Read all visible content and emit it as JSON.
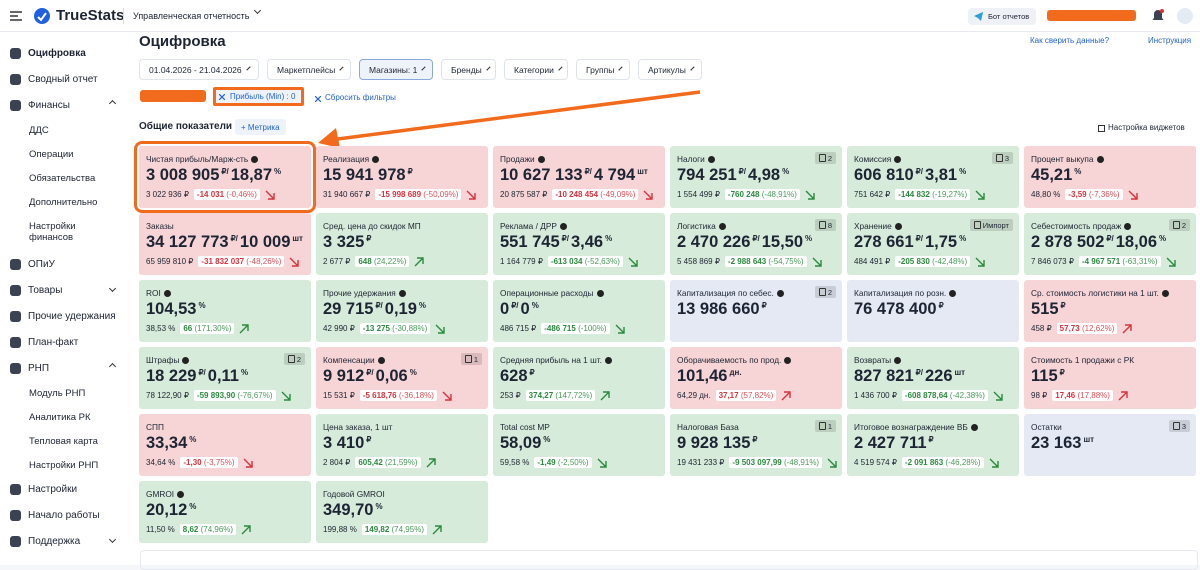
{
  "header": {
    "logo": "TrueStats",
    "report": "Управленческая отчетность",
    "bot": "Бот отчетов"
  },
  "sidebar": {
    "items": [
      {
        "label": "Оцифровка",
        "level": 0,
        "active": true
      },
      {
        "label": "Сводный отчет",
        "level": 0
      },
      {
        "label": "Финансы",
        "level": 0,
        "open": true
      },
      {
        "label": "ДДС",
        "level": 1
      },
      {
        "label": "Операции",
        "level": 1
      },
      {
        "label": "Обязательства",
        "level": 1
      },
      {
        "label": "Дополнительно",
        "level": 1
      },
      {
        "label": "Настройки финансов",
        "level": 1
      },
      {
        "label": "ОПиУ",
        "level": 0
      },
      {
        "label": "Товары",
        "level": 0,
        "open": false
      },
      {
        "label": "Прочие удержания",
        "level": 0
      },
      {
        "label": "План-факт",
        "level": 0
      },
      {
        "label": "РНП",
        "level": 0,
        "open": true
      },
      {
        "label": "Модуль РНП",
        "level": 1
      },
      {
        "label": "Аналитика РК",
        "level": 1
      },
      {
        "label": "Тепловая карта",
        "level": 1
      },
      {
        "label": "Настройки РНП",
        "level": 1
      },
      {
        "label": "Настройки",
        "level": 0
      },
      {
        "label": "Начало работы",
        "level": 0
      },
      {
        "label": "Поддержка",
        "level": 0,
        "open": false
      }
    ]
  },
  "page": {
    "title": "Оцифровка",
    "help_link": "Как сверить данные?",
    "instruction_link": "Инструкция",
    "filters": [
      "01.04.2026 - 21.04.2026",
      "Маркетплейсы",
      "Магазины: 1",
      "Бренды",
      "Категории",
      "Группы",
      "Артикулы"
    ],
    "active_filter": "Прибыль (Min) : 0",
    "reset": "Сбросить фильтры",
    "section": "Общие показатели",
    "add_metric": "+ Метрика",
    "widget_settings": "Настройка виджетов"
  },
  "cards": [
    {
      "title": "Чистая прибыль/Марж-сть",
      "info": true,
      "highlight": true,
      "color": "red",
      "value": [
        "3 008 905",
        "₽/",
        "18,87",
        "%"
      ],
      "prev": "3 022 936 ₽",
      "delta": "-14 031",
      "pct": "(-0,46%)",
      "dir": "down",
      "good": false
    },
    {
      "title": "Реализация",
      "info": true,
      "color": "red",
      "value": [
        "15 941 978",
        "₽"
      ],
      "prev": "31 940 667 ₽",
      "delta": "-15 998 689",
      "pct": "(-50,09%)",
      "dir": "down",
      "good": false
    },
    {
      "title": "Продажи",
      "info": true,
      "color": "red",
      "value": [
        "10 627 133",
        "₽/",
        "4 794",
        "шт"
      ],
      "prev": "20 875 587 ₽",
      "delta": "-10 248 454",
      "pct": "(-49,09%)",
      "dir": "down",
      "good": false
    },
    {
      "title": "Налоги",
      "info": true,
      "badge": "2",
      "color": "green",
      "value": [
        "794 251",
        "₽/",
        "4,98",
        "%"
      ],
      "prev": "1 554 499 ₽",
      "delta": "-760 248",
      "pct": "(-48,91%)",
      "dir": "down",
      "good": true
    },
    {
      "title": "Комиссия",
      "info": true,
      "badge": "3",
      "color": "green",
      "value": [
        "606 810",
        "₽/",
        "3,81",
        "%"
      ],
      "prev": "751 642 ₽",
      "delta": "-144 832",
      "pct": "(-19,27%)",
      "dir": "down",
      "good": true
    },
    {
      "title": "Процент выкупа",
      "info": true,
      "color": "red",
      "value": [
        "45,21",
        "%"
      ],
      "prev": "48,80 %",
      "delta": "-3,59",
      "pct": "(-7,36%)",
      "dir": "down",
      "good": false
    },
    {
      "title": "Заказы",
      "color": "red",
      "value": [
        "34 127 773",
        "₽/",
        "10 009",
        "шт"
      ],
      "prev": "65 959 810 ₽",
      "delta": "-31 832 037",
      "pct": "(-48,26%)",
      "dir": "down",
      "good": false
    },
    {
      "title": "Сред. цена до скидок МП",
      "color": "green",
      "value": [
        "3 325",
        "₽"
      ],
      "prev": "2 677 ₽",
      "delta": "648",
      "pct": "(24,22%)",
      "dir": "up",
      "good": true
    },
    {
      "title": "Реклама / ДРР",
      "info": true,
      "color": "green",
      "value": [
        "551 745",
        "₽/",
        "3,46",
        "%"
      ],
      "prev": "1 164 779 ₽",
      "delta": "-613 034",
      "pct": "(-52,63%)",
      "dir": "down",
      "good": true
    },
    {
      "title": "Логистика",
      "info": true,
      "badge": "8",
      "color": "green",
      "value": [
        "2 470 226",
        "₽/",
        "15,50",
        "%"
      ],
      "prev": "5 458 869 ₽",
      "delta": "-2 988 643",
      "pct": "(-54,75%)",
      "dir": "down",
      "good": true
    },
    {
      "title": "Хранение",
      "info": true,
      "badge": "Импорт",
      "color": "green",
      "value": [
        "278 661",
        "₽/",
        "1,75",
        "%"
      ],
      "prev": "484 491 ₽",
      "delta": "-205 830",
      "pct": "(-42,48%)",
      "dir": "down",
      "good": true
    },
    {
      "title": "Себестоимость продаж",
      "info": true,
      "badge": "2",
      "color": "green",
      "value": [
        "2 878 502",
        "₽/",
        "18,06",
        "%"
      ],
      "prev": "7 846 073 ₽",
      "delta": "-4 967 571",
      "pct": "(-63,31%)",
      "dir": "down",
      "good": true
    },
    {
      "title": "ROI",
      "info": true,
      "color": "green",
      "value": [
        "104,53",
        "%"
      ],
      "prev": "38,53 %",
      "delta": "66",
      "pct": "(171,30%)",
      "dir": "up",
      "good": true
    },
    {
      "title": "Прочие удержания",
      "info": true,
      "color": "green",
      "value": [
        "29 715",
        "₽/",
        "0,19",
        "%"
      ],
      "prev": "42 990 ₽",
      "delta": "-13 275",
      "pct": "(-30,88%)",
      "dir": "down",
      "good": true
    },
    {
      "title": "Операционные расходы",
      "info": true,
      "color": "green",
      "value": [
        "0",
        "₽/",
        "0",
        "%"
      ],
      "prev": "486 715 ₽",
      "delta": "-486 715",
      "pct": "(-100%)",
      "dir": "down",
      "good": true
    },
    {
      "title": "Капитализация по себес.",
      "info": true,
      "badge": "2",
      "color": "blue",
      "value": [
        "13 986 660",
        "₽"
      ]
    },
    {
      "title": "Капитализация по розн.",
      "info": true,
      "color": "blue",
      "value": [
        "76 478 400",
        "₽"
      ]
    },
    {
      "title": "Ср. стоимость логистики на 1 шт.",
      "info": true,
      "color": "red",
      "value": [
        "515",
        "₽"
      ],
      "prev": "458 ₽",
      "delta": "57,73",
      "pct": "(12,62%)",
      "dir": "up",
      "good": false
    },
    {
      "title": "Штрафы",
      "info": true,
      "badge": "2",
      "color": "green",
      "value": [
        "18 229",
        "₽/",
        "0,11",
        "%"
      ],
      "prev": "78 122,90 ₽",
      "delta": "-59 893,90",
      "pct": "(-76,67%)",
      "dir": "down",
      "good": true
    },
    {
      "title": "Компенсации",
      "info": true,
      "badge": "1",
      "color": "red",
      "value": [
        "9 912",
        "₽/",
        "0,06",
        "%"
      ],
      "prev": "15 531 ₽",
      "delta": "-5 618,76",
      "pct": "(-36,18%)",
      "dir": "down",
      "good": false
    },
    {
      "title": "Средняя прибыль на 1 шт.",
      "info": true,
      "color": "green",
      "value": [
        "628",
        "₽"
      ],
      "prev": "253 ₽",
      "delta": "374,27",
      "pct": "(147,72%)",
      "dir": "up",
      "good": true
    },
    {
      "title": "Оборачиваемость по прод.",
      "info": true,
      "color": "red",
      "value": [
        "101,46",
        "дн."
      ],
      "prev": "64,29 дн.",
      "delta": "37,17",
      "pct": "(57,82%)",
      "dir": "up",
      "good": false
    },
    {
      "title": "Возвраты",
      "info": true,
      "color": "green",
      "value": [
        "827 821",
        "₽/",
        "226",
        "шт"
      ],
      "prev": "1 436 700 ₽",
      "delta": "-608 878,64",
      "pct": "(-42,38%)",
      "dir": "down",
      "good": true
    },
    {
      "title": "Стоимость 1 продажи с РК",
      "color": "red",
      "value": [
        "115",
        "₽"
      ],
      "prev": "98 ₽",
      "delta": "17,46",
      "pct": "(17,88%)",
      "dir": "up",
      "good": false
    },
    {
      "title": "СПП",
      "color": "red",
      "value": [
        "33,34",
        "%"
      ],
      "prev": "34,64 %",
      "delta": "-1,30",
      "pct": "(-3,75%)",
      "dir": "down",
      "good": false
    },
    {
      "title": "Цена заказа, 1 шт",
      "color": "green",
      "value": [
        "3 410",
        "₽"
      ],
      "prev": "2 804 ₽",
      "delta": "605,42",
      "pct": "(21,59%)",
      "dir": "up",
      "good": true
    },
    {
      "title": "Total cost MP",
      "color": "green",
      "value": [
        "58,09",
        "%"
      ],
      "prev": "59,58 %",
      "delta": "-1,49",
      "pct": "(-2,50%)",
      "dir": "down",
      "good": true
    },
    {
      "title": "Налоговая База",
      "badge": "1",
      "color": "green",
      "value": [
        "9 928 135",
        "₽"
      ],
      "prev": "19 431 233 ₽",
      "delta": "-9 503 097,99",
      "pct": "(-48,91%)",
      "dir": "down",
      "good": true
    },
    {
      "title": "Итоговое вознаграждение ВБ",
      "info": true,
      "color": "green",
      "value": [
        "2 427 711",
        "₽"
      ],
      "prev": "4 519 574 ₽",
      "delta": "-2 091 863",
      "pct": "(-46,28%)",
      "dir": "down",
      "good": true
    },
    {
      "title": "Остатки",
      "badge": "3",
      "color": "blue",
      "value": [
        "23 163",
        "шт"
      ]
    },
    {
      "title": "GMROI",
      "info": true,
      "color": "green",
      "value": [
        "20,12",
        "%"
      ],
      "prev": "11,50 %",
      "delta": "8,62",
      "pct": "(74,96%)",
      "dir": "up",
      "good": true
    },
    {
      "title": "Годовой GMROI",
      "color": "green",
      "value": [
        "349,70",
        "%"
      ],
      "prev": "199,88 %",
      "delta": "149,82",
      "pct": "(74,95%)",
      "dir": "up",
      "good": true
    }
  ]
}
